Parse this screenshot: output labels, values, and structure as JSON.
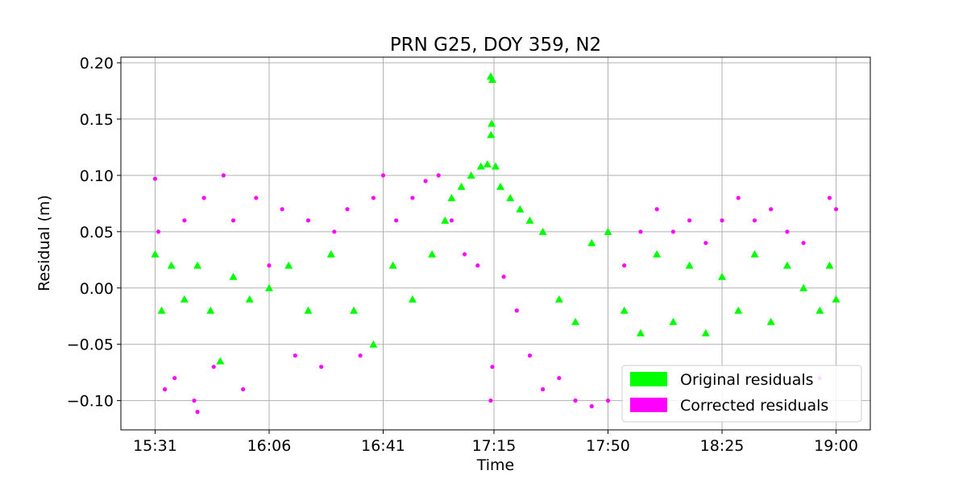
{
  "chart_data": {
    "type": "scatter",
    "title": "PRN G25, DOY 359, N2",
    "xlabel": "Time",
    "ylabel": "Residual (m)",
    "x_ticks": [
      "15:31",
      "16:06",
      "16:41",
      "17:15",
      "17:50",
      "18:25",
      "19:00"
    ],
    "x_tick_minutes": [
      931,
      966,
      1001,
      1035,
      1070,
      1105,
      1140
    ],
    "xlim_minutes": [
      920.5,
      1150.5
    ],
    "y_ticks": [
      "0.20",
      "0.15",
      "0.10",
      "0.05",
      "0.00",
      "−0.05",
      "−0.10"
    ],
    "y_tick_values": [
      0.2,
      0.15,
      0.1,
      0.05,
      0.0,
      -0.05,
      -0.1
    ],
    "ylim": [
      -0.126,
      0.205
    ],
    "grid": true,
    "legend_position": "lower-right",
    "series": [
      {
        "name": "Original residuals",
        "marker": "triangle",
        "color": "#00ff00",
        "points": [
          [
            931,
            0.03
          ],
          [
            933,
            -0.02
          ],
          [
            936,
            0.02
          ],
          [
            940,
            -0.01
          ],
          [
            944,
            0.02
          ],
          [
            948,
            -0.02
          ],
          [
            951,
            -0.065
          ],
          [
            955,
            0.01
          ],
          [
            960,
            -0.01
          ],
          [
            966,
            0.0
          ],
          [
            972,
            0.02
          ],
          [
            978,
            -0.02
          ],
          [
            985,
            0.03
          ],
          [
            992,
            -0.02
          ],
          [
            998,
            -0.05
          ],
          [
            1004,
            0.02
          ],
          [
            1010,
            -0.01
          ],
          [
            1016,
            0.03
          ],
          [
            1020,
            0.06
          ],
          [
            1022,
            0.08
          ],
          [
            1025,
            0.09
          ],
          [
            1028,
            0.1
          ],
          [
            1031,
            0.108
          ],
          [
            1033,
            0.11
          ],
          [
            1034,
            0.188
          ],
          [
            1034.5,
            0.185
          ],
          [
            1034.3,
            0.146
          ],
          [
            1034.1,
            0.136
          ],
          [
            1035.5,
            0.108
          ],
          [
            1037,
            0.09
          ],
          [
            1040,
            0.08
          ],
          [
            1043,
            0.07
          ],
          [
            1046,
            0.06
          ],
          [
            1050,
            0.05
          ],
          [
            1055,
            -0.01
          ],
          [
            1060,
            -0.03
          ],
          [
            1065,
            0.04
          ],
          [
            1070,
            0.05
          ],
          [
            1075,
            -0.02
          ],
          [
            1080,
            -0.04
          ],
          [
            1085,
            0.03
          ],
          [
            1090,
            -0.03
          ],
          [
            1095,
            0.02
          ],
          [
            1100,
            -0.04
          ],
          [
            1105,
            0.01
          ],
          [
            1110,
            -0.02
          ],
          [
            1115,
            0.03
          ],
          [
            1120,
            -0.03
          ],
          [
            1125,
            0.02
          ],
          [
            1130,
            0.0
          ],
          [
            1135,
            -0.02
          ],
          [
            1138,
            0.02
          ],
          [
            1140,
            -0.01
          ]
        ]
      },
      {
        "name": "Corrected residuals",
        "marker": "circle",
        "color": "#ff00ff",
        "points": [
          [
            931,
            0.097
          ],
          [
            932,
            0.05
          ],
          [
            934,
            -0.09
          ],
          [
            937,
            -0.08
          ],
          [
            940,
            0.06
          ],
          [
            943,
            -0.1
          ],
          [
            944,
            -0.11
          ],
          [
            946,
            0.08
          ],
          [
            949,
            -0.07
          ],
          [
            952,
            0.1
          ],
          [
            955,
            0.06
          ],
          [
            958,
            -0.09
          ],
          [
            962,
            0.08
          ],
          [
            966,
            0.02
          ],
          [
            970,
            0.07
          ],
          [
            974,
            -0.06
          ],
          [
            978,
            0.06
          ],
          [
            982,
            -0.07
          ],
          [
            986,
            0.05
          ],
          [
            990,
            0.07
          ],
          [
            994,
            -0.06
          ],
          [
            998,
            0.08
          ],
          [
            1001,
            0.1
          ],
          [
            1005,
            0.06
          ],
          [
            1010,
            0.08
          ],
          [
            1014,
            0.095
          ],
          [
            1018,
            0.1
          ],
          [
            1022,
            0.06
          ],
          [
            1026,
            0.03
          ],
          [
            1030,
            0.02
          ],
          [
            1034,
            -0.1
          ],
          [
            1034.5,
            -0.07
          ],
          [
            1038,
            0.01
          ],
          [
            1042,
            -0.02
          ],
          [
            1046,
            -0.06
          ],
          [
            1050,
            -0.09
          ],
          [
            1055,
            -0.08
          ],
          [
            1060,
            -0.1
          ],
          [
            1065,
            -0.105
          ],
          [
            1070,
            -0.1
          ],
          [
            1075,
            0.02
          ],
          [
            1080,
            0.05
          ],
          [
            1085,
            0.07
          ],
          [
            1090,
            0.05
          ],
          [
            1095,
            0.06
          ],
          [
            1100,
            0.04
          ],
          [
            1105,
            0.06
          ],
          [
            1110,
            0.08
          ],
          [
            1115,
            0.06
          ],
          [
            1120,
            0.07
          ],
          [
            1125,
            0.05
          ],
          [
            1130,
            0.04
          ],
          [
            1135,
            -0.08
          ],
          [
            1138,
            0.08
          ],
          [
            1140,
            0.07
          ]
        ]
      }
    ]
  }
}
